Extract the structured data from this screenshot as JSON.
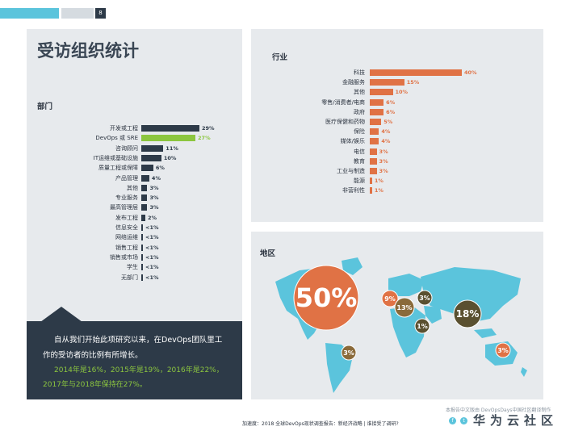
{
  "page_number": "8",
  "title": "受访组织统计",
  "department": {
    "heading": "部门",
    "items": [
      {
        "label": "开发或工程",
        "value": 29,
        "pct": "29%"
      },
      {
        "label": "DevOps 或 SRE",
        "value": 27,
        "pct": "27%",
        "highlight": true
      },
      {
        "label": "咨询顾问",
        "value": 11,
        "pct": "11%"
      },
      {
        "label": "IT运维或基础设施",
        "value": 10,
        "pct": "10%"
      },
      {
        "label": "质量工程或保障",
        "value": 6,
        "pct": "6%"
      },
      {
        "label": "产品管理",
        "value": 4,
        "pct": "4%"
      },
      {
        "label": "其他",
        "value": 3,
        "pct": "3%"
      },
      {
        "label": "专业服务",
        "value": 3,
        "pct": "3%"
      },
      {
        "label": "最高管理层",
        "value": 3,
        "pct": "3%"
      },
      {
        "label": "发布工程",
        "value": 2,
        "pct": "2%"
      },
      {
        "label": "信息安全",
        "value": 0.5,
        "pct": "<1%"
      },
      {
        "label": "网络运维",
        "value": 0.5,
        "pct": "<1%"
      },
      {
        "label": "销售工程",
        "value": 0.5,
        "pct": "<1%"
      },
      {
        "label": "销售或市场",
        "value": 0.5,
        "pct": "<1%"
      },
      {
        "label": "学生",
        "value": 0.5,
        "pct": "<1%"
      },
      {
        "label": "无部门",
        "value": 0.5,
        "pct": "<1%"
      }
    ]
  },
  "industry": {
    "heading": "行业",
    "items": [
      {
        "label": "科技",
        "value": 40,
        "pct": "40%"
      },
      {
        "label": "金融服务",
        "value": 15,
        "pct": "15%"
      },
      {
        "label": "其他",
        "value": 10,
        "pct": "10%"
      },
      {
        "label": "零售/消费者/电商",
        "value": 6,
        "pct": "6%"
      },
      {
        "label": "政府",
        "value": 6,
        "pct": "6%"
      },
      {
        "label": "医疗保健和药物",
        "value": 5,
        "pct": "5%"
      },
      {
        "label": "保险",
        "value": 4,
        "pct": "4%"
      },
      {
        "label": "媒体/娱乐",
        "value": 4,
        "pct": "4%"
      },
      {
        "label": "电信",
        "value": 3,
        "pct": "3%"
      },
      {
        "label": "教育",
        "value": 3,
        "pct": "3%"
      },
      {
        "label": "工业与制造",
        "value": 3,
        "pct": "3%"
      },
      {
        "label": "能源",
        "value": 1,
        "pct": "1%"
      },
      {
        "label": "非营利性",
        "value": 1,
        "pct": "1%"
      }
    ]
  },
  "region": {
    "heading": "地区",
    "bubbles": [
      {
        "label": "50%",
        "value": 50,
        "color": "#e07245"
      },
      {
        "label": "9%",
        "value": 9,
        "color": "#e07245"
      },
      {
        "label": "13%",
        "value": 13,
        "color": "#8a6a3a"
      },
      {
        "label": "3%",
        "value": 3,
        "color": "#5a5030"
      },
      {
        "label": "18%",
        "value": 18,
        "color": "#5a5030"
      },
      {
        "label": "1%",
        "value": 1,
        "color": "#5a5030"
      },
      {
        "label": "3%",
        "value": 3,
        "color": "#8a6a3a"
      },
      {
        "label": "3%",
        "value": 3,
        "color": "#e07245"
      }
    ]
  },
  "callout": {
    "white": "自从我们开始此项研究以来，在DevOps团队里工作的受访者的比例有所增长。",
    "green": "2014年是16%，2015年是19%，2016年是22%，2017年与2018年保持在27%。"
  },
  "footer": {
    "source": "本报告中文版由 DevOpsDays中国社区翻译制作",
    "text": "加速度：2018 全球DevOps现状调查报告：新经济战略  |  谁接受了调研?",
    "watermark": "华为云社区"
  },
  "colors": {
    "accent_cyan": "#5bc4dc",
    "navy": "#2d3a48",
    "green": "#8cc63f",
    "orange": "#e07245",
    "panel": "#e7eaed"
  }
}
